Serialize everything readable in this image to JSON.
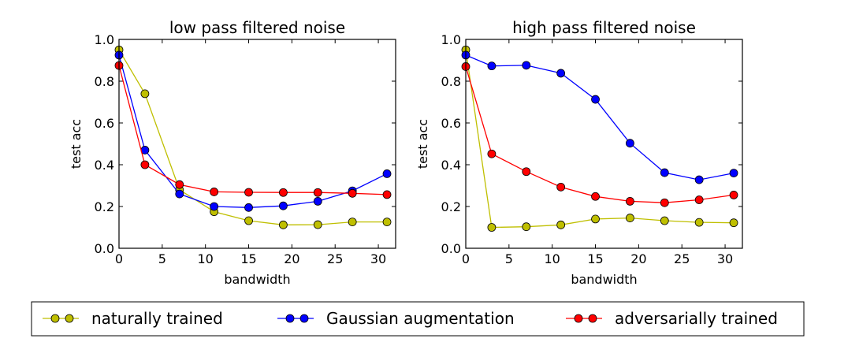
{
  "colors": {
    "natural": "#bfbf00",
    "gaussian": "#0000ff",
    "adversarial": "#ff0000"
  },
  "legend": {
    "items": [
      {
        "label": "naturally trained",
        "series_key": "natural"
      },
      {
        "label": "Gaussian augmentation",
        "series_key": "gaussian"
      },
      {
        "label": "adversarially trained",
        "series_key": "adversarial"
      }
    ]
  },
  "chart_data": [
    {
      "type": "line",
      "title": "low pass filtered noise",
      "xlabel": "bandwidth",
      "ylabel": "test acc",
      "xlim": [
        0,
        32
      ],
      "ylim": [
        0.0,
        1.0
      ],
      "xticks": [
        0,
        5,
        10,
        15,
        20,
        25,
        30
      ],
      "yticks": [
        0.0,
        0.2,
        0.4,
        0.6,
        0.8,
        1.0
      ],
      "xtick_labels": [
        "0",
        "5",
        "10",
        "15",
        "20",
        "25",
        "30"
      ],
      "ytick_labels": [
        "0.0",
        "0.2",
        "0.4",
        "0.6",
        "0.8",
        "1.0"
      ],
      "grid": false,
      "x": [
        0,
        3,
        7,
        11,
        15,
        19,
        23,
        27,
        31
      ],
      "series": [
        {
          "name": "naturally trained",
          "key": "natural",
          "values": [
            0.95,
            0.74,
            0.28,
            0.175,
            0.132,
            0.112,
            0.113,
            0.126,
            0.126
          ]
        },
        {
          "name": "Gaussian augmentation",
          "key": "gaussian",
          "values": [
            0.925,
            0.47,
            0.26,
            0.2,
            0.195,
            0.203,
            0.225,
            0.275,
            0.357
          ]
        },
        {
          "name": "adversarially trained",
          "key": "adversarial",
          "values": [
            0.875,
            0.4,
            0.305,
            0.27,
            0.268,
            0.267,
            0.267,
            0.263,
            0.257
          ]
        }
      ]
    },
    {
      "type": "line",
      "title": "high pass filtered noise",
      "xlabel": "bandwidth",
      "ylabel": "test acc",
      "xlim": [
        0,
        32
      ],
      "ylim": [
        0.0,
        1.0
      ],
      "xticks": [
        0,
        5,
        10,
        15,
        20,
        25,
        30
      ],
      "yticks": [
        0.0,
        0.2,
        0.4,
        0.6,
        0.8,
        1.0
      ],
      "xtick_labels": [
        "0",
        "5",
        "10",
        "15",
        "20",
        "25",
        "30"
      ],
      "ytick_labels": [
        "0.0",
        "0.2",
        "0.4",
        "0.6",
        "0.8",
        "1.0"
      ],
      "grid": false,
      "x": [
        0,
        3,
        7,
        11,
        15,
        19,
        23,
        27,
        31
      ],
      "series": [
        {
          "name": "naturally trained",
          "key": "natural",
          "values": [
            0.95,
            0.1,
            0.103,
            0.112,
            0.14,
            0.145,
            0.132,
            0.124,
            0.122
          ]
        },
        {
          "name": "Gaussian augmentation",
          "key": "gaussian",
          "values": [
            0.925,
            0.873,
            0.876,
            0.838,
            0.713,
            0.503,
            0.362,
            0.328,
            0.36
          ]
        },
        {
          "name": "adversarially trained",
          "key": "adversarial",
          "values": [
            0.87,
            0.452,
            0.367,
            0.293,
            0.248,
            0.225,
            0.218,
            0.232,
            0.255
          ]
        }
      ]
    }
  ]
}
